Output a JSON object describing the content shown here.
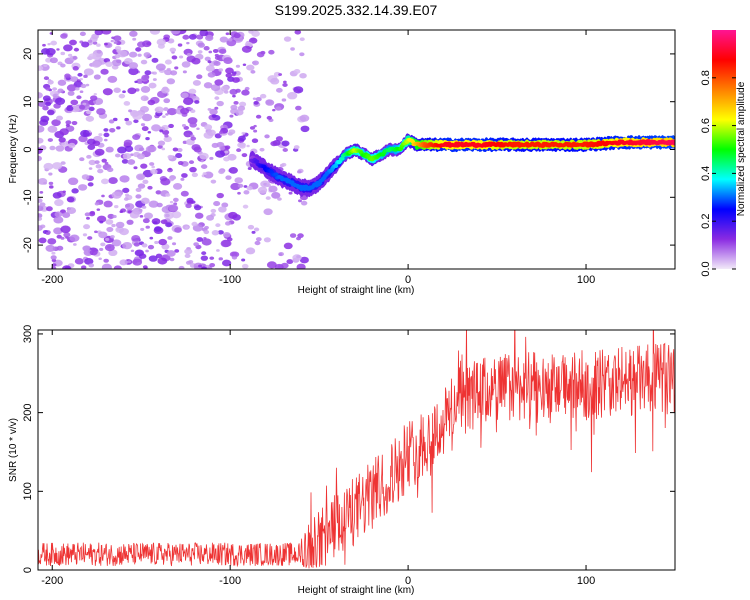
{
  "title": "S199.2025.332.14.39.E07",
  "chart_data": [
    {
      "type": "heatmap",
      "name": "spectrogram",
      "xlabel": "Height of straight line (km)",
      "ylabel": "Frequency (Hz)",
      "xlim": [
        -208,
        150
      ],
      "ylim": [
        -25,
        25
      ],
      "xticks": [
        -200,
        -100,
        0,
        100
      ],
      "yticks": [
        -20,
        -10,
        0,
        10,
        20
      ],
      "colorbar": {
        "label": "Normalized spectral amplitude",
        "range": [
          0,
          1
        ],
        "ticks": [
          "0.0",
          "0.2",
          "0.4",
          "0.6",
          "0.8"
        ],
        "colors": [
          "#f2eaf8",
          "#8a2be2",
          "#0000ff",
          "#00ffff",
          "#00ff00",
          "#ffff00",
          "#ff8000",
          "#ff0000",
          "#ff1493"
        ]
      },
      "noise_region_km": [
        -208,
        -55
      ],
      "ridge": {
        "x": [
          -88,
          -80,
          -72,
          -65,
          -60,
          -55,
          -50,
          -45,
          -40,
          -35,
          -30,
          -25,
          -20,
          -15,
          -10,
          -5,
          0,
          5,
          10,
          20,
          40,
          60,
          80,
          100,
          120,
          150
        ],
        "freq": [
          -2,
          -4,
          -6,
          -7,
          -8,
          -8,
          -7,
          -5,
          -3,
          -1,
          0,
          -1,
          -2,
          -1,
          0,
          0,
          2,
          1,
          1,
          1,
          1,
          1,
          1,
          1,
          1.5,
          1.5
        ],
        "amplitude": [
          0.15,
          0.25,
          0.3,
          0.3,
          0.3,
          0.3,
          0.3,
          0.3,
          0.35,
          0.45,
          0.6,
          0.5,
          0.55,
          0.5,
          0.45,
          0.5,
          0.6,
          0.7,
          0.8,
          0.9,
          0.9,
          0.85,
          0.85,
          0.85,
          0.9,
          0.95
        ]
      }
    },
    {
      "type": "line",
      "name": "snr",
      "color": "#ee3333",
      "xlabel": "Height of straight line (km)",
      "ylabel": "SNR (10 * v/v)",
      "xlim": [
        -208,
        150
      ],
      "ylim": [
        0,
        305
      ],
      "xticks": [
        -200,
        -100,
        0,
        100
      ],
      "yticks": [
        0,
        100,
        200,
        300
      ],
      "trend": {
        "x": [
          -208,
          -60,
          -50,
          -40,
          -30,
          -20,
          -10,
          0,
          10,
          20,
          25,
          30,
          40,
          60,
          80,
          100,
          120,
          150
        ],
        "y": [
          20,
          20,
          30,
          55,
          75,
          95,
          120,
          145,
          165,
          185,
          210,
          215,
          225,
          235,
          230,
          235,
          240,
          245
        ]
      },
      "noise_amplitude": [
        15,
        45
      ]
    }
  ]
}
